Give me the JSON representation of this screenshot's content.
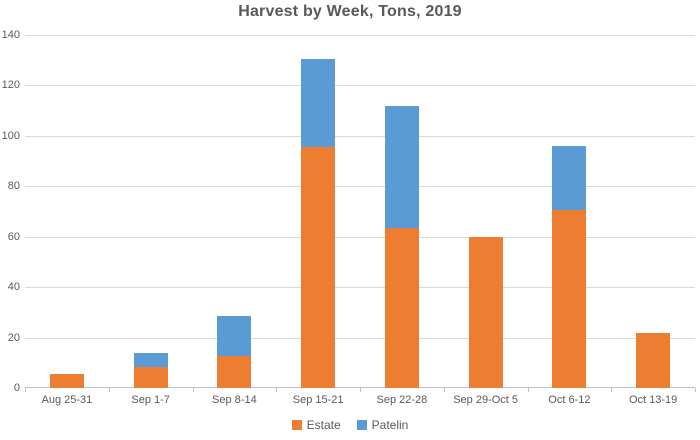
{
  "chart_data": {
    "type": "bar",
    "stacked": true,
    "title": "Harvest by Week, Tons, 2019",
    "categories": [
      "Aug 25-31",
      "Sep 1-7",
      "Sep 8-14",
      "Sep 15-21",
      "Sep 22-28",
      "Sep 29-Oct 5",
      "Oct 6-12",
      "Oct 13-19"
    ],
    "series": [
      {
        "name": "Estate",
        "color": "#ED7D31",
        "values": [
          5.5,
          8.5,
          12.5,
          95.5,
          63.5,
          60,
          70.5,
          22
        ]
      },
      {
        "name": "Patelin",
        "color": "#5B9BD5",
        "values": [
          0,
          5.5,
          16,
          35,
          48.5,
          0,
          25.5,
          0
        ]
      }
    ],
    "stack_totals": [
      5.5,
      14,
      28.5,
      130.5,
      112,
      60,
      96,
      22
    ],
    "xlabel": "",
    "ylabel": "",
    "ylim": [
      0,
      140
    ],
    "y_ticks": [
      0,
      20,
      40,
      60,
      80,
      100,
      120,
      140
    ],
    "grid": true,
    "legend_position": "bottom"
  },
  "palette": {
    "estate_orange": "#ED7D31",
    "patelin_blue": "#5B9BD5",
    "text_gray": "#595959",
    "gridline_gray": "#D9D9D9",
    "axis_gray": "#BFBFBF"
  }
}
